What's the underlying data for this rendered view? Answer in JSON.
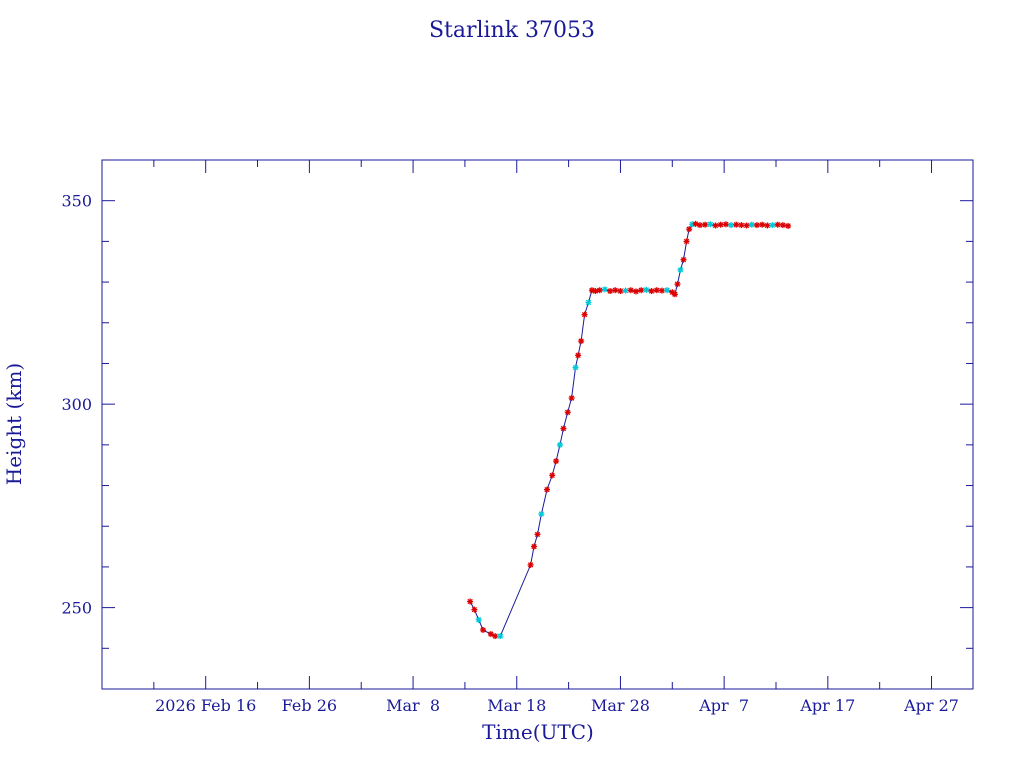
{
  "chart_data": {
    "type": "line",
    "title": "Starlink 37053",
    "xlabel": "Time(UTC)",
    "ylabel": "Height (km)",
    "x_tick_labels": [
      "2026 Feb 16",
      "Feb 26",
      "Mar  8",
      "Mar 18",
      "Mar 28",
      "Apr  7",
      "Apr 17",
      "Apr 27"
    ],
    "x_tick_dates": [
      "2026-02-16",
      "2026-02-26",
      "2026-03-08",
      "2026-03-18",
      "2026-03-28",
      "2026-04-07",
      "2026-04-17",
      "2026-04-27"
    ],
    "xlim": [
      "2026-02-06",
      "2026-05-01"
    ],
    "ylim": [
      230,
      360
    ],
    "y_ticks": [
      250,
      300,
      350
    ],
    "grid": false,
    "colors": {
      "axis": "#1a1a99",
      "line": "#1a1a99",
      "marker_primary": "#dd0000",
      "marker_secondary": "#00c8d8"
    },
    "series": [
      {
        "x": [
          "2026-03-13 12:00",
          "2026-03-13 22:00",
          "2026-03-14 08:00",
          "2026-03-14 18:00",
          "2026-03-15 12:00",
          "2026-03-15 22:00",
          "2026-03-16 10:00",
          "2026-03-19 08:00",
          "2026-03-19 16:00",
          "2026-03-20 00:00",
          "2026-03-20 09:00",
          "2026-03-20 22:00",
          "2026-03-21 10:00",
          "2026-03-21 19:00",
          "2026-03-22 04:00",
          "2026-03-22 12:00",
          "2026-03-22 22:00",
          "2026-03-23 07:00",
          "2026-03-23 16:00",
          "2026-03-23 22:00",
          "2026-03-24 05:00",
          "2026-03-24 13:00",
          "2026-03-24 22:00",
          "2026-03-25 06:00",
          "2026-03-25 14:00",
          "2026-03-26 00:00",
          "2026-03-26 12:00",
          "2026-03-27 00:00",
          "2026-03-27 12:00",
          "2026-03-28 00:00",
          "2026-03-28 12:00",
          "2026-03-29 00:00",
          "2026-03-29 12:00",
          "2026-03-30 00:00",
          "2026-03-30 12:00",
          "2026-03-31 00:00",
          "2026-03-31 12:00",
          "2026-04-01 00:00",
          "2026-04-01 12:00",
          "2026-04-02 00:00",
          "2026-04-02 06:00",
          "2026-04-02 12:00",
          "2026-04-02 19:00",
          "2026-04-03 02:00",
          "2026-04-03 09:00",
          "2026-04-03 15:00",
          "2026-04-03 22:00",
          "2026-04-04 06:00",
          "2026-04-04 16:00",
          "2026-04-05 04:00",
          "2026-04-05 16:00",
          "2026-04-06 04:00",
          "2026-04-06 16:00",
          "2026-04-07 04:00",
          "2026-04-07 16:00",
          "2026-04-08 04:00",
          "2026-04-08 16:00",
          "2026-04-09 04:00",
          "2026-04-09 16:00",
          "2026-04-10 04:00",
          "2026-04-10 16:00",
          "2026-04-11 04:00",
          "2026-04-11 16:00",
          "2026-04-12 04:00",
          "2026-04-12 16:00",
          "2026-04-13 04:00"
        ],
        "y": [
          251.5,
          249.5,
          247,
          244.5,
          243.5,
          243,
          243,
          260.5,
          265,
          268,
          273,
          279,
          282.5,
          286,
          290,
          294,
          298,
          301.5,
          309,
          312,
          315.5,
          322,
          325,
          328,
          327.8,
          328,
          328.2,
          327.8,
          328,
          327.8,
          327.9,
          328,
          327.7,
          328,
          328.1,
          327.8,
          328,
          327.9,
          328,
          327.5,
          327,
          329.5,
          333,
          335.5,
          340,
          343,
          344.2,
          344.3,
          344,
          344.1,
          344.2,
          343.9,
          344.1,
          344.2,
          344,
          344.1,
          344,
          343.9,
          344.1,
          344,
          344.1,
          343.9,
          344,
          344.1,
          344,
          343.8
        ]
      }
    ]
  }
}
